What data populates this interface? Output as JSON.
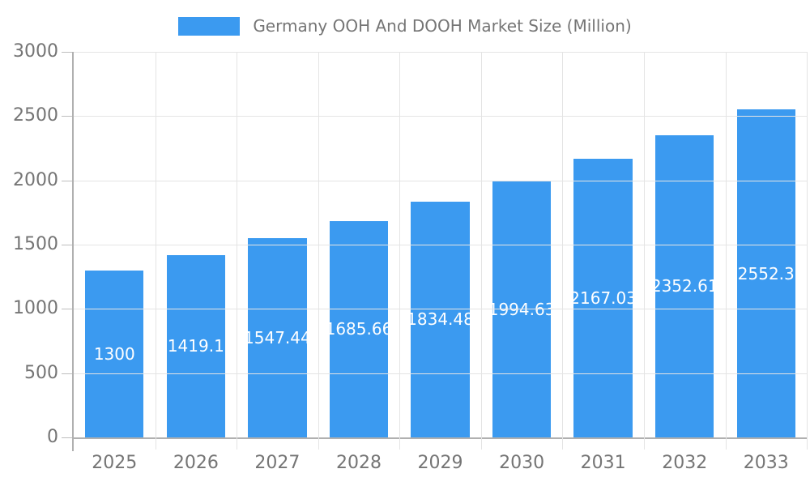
{
  "legend": {
    "swatch_color": "#3b9af0"
  },
  "colors": {
    "bar": "#3b9af0",
    "bar_label_text": "#ffffff",
    "axis_line": "#b0b0b0",
    "gridline": "#e4e4e4",
    "tick": "#bdbdbd",
    "text": "#757575",
    "background": "#ffffff"
  },
  "chart_data": {
    "type": "bar",
    "title": "Germany OOH And DOOH Market Size (Million)",
    "categories": [
      "2025",
      "2026",
      "2027",
      "2028",
      "2029",
      "2030",
      "2031",
      "2032",
      "2033"
    ],
    "values": [
      1300,
      1419.1,
      1547.44,
      1685.66,
      1834.48,
      1994.63,
      2167.03,
      2352.61,
      2552.3
    ],
    "value_labels": [
      "1300",
      "1419.1",
      "1547.44",
      "1685.66",
      "1834.48",
      "1994.63",
      "2167.03",
      "2352.61",
      "2552.3"
    ],
    "xlabel": "",
    "ylabel": "",
    "ylim": [
      0,
      3000
    ],
    "yticks": [
      0,
      500,
      1000,
      1500,
      2000,
      2500,
      3000
    ],
    "grid": true,
    "legend_position": "top",
    "bar_label_position": "inside-center"
  }
}
